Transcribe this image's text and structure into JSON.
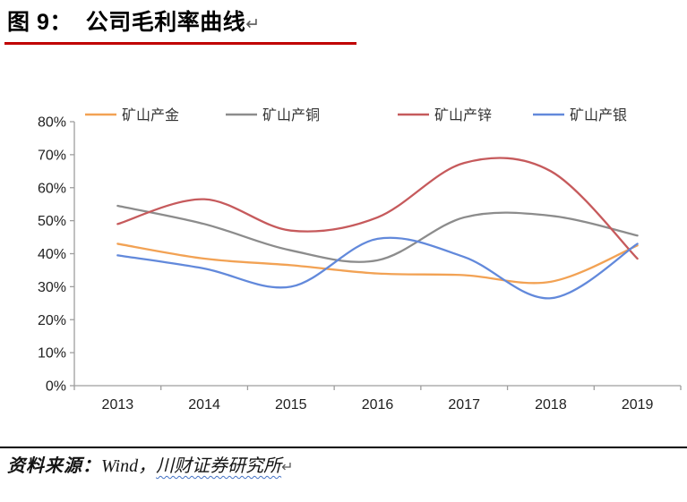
{
  "page": {
    "title": "图 9：  公司毛利率曲线",
    "title_return_mark": "↵",
    "footer": {
      "prefix": "资料来源：",
      "source_plain": "Wind，",
      "source_underlined": "川财证券研究所",
      "return_mark": "↵"
    }
  },
  "colors": {
    "title_rule": "#C00000",
    "footer_rule": "#000000",
    "wavy_underline": "#4472C4",
    "axis": "#9E9E9E",
    "tick_label": "#1F1F1F",
    "legend_label": "#333333"
  },
  "chart_data": {
    "type": "line",
    "title": "公司毛利率曲线",
    "categories": [
      "2013",
      "2014",
      "2015",
      "2016",
      "2017",
      "2018",
      "2019"
    ],
    "series": [
      {
        "key": "gold",
        "name": "矿山产金",
        "color": "#F2A254",
        "values": [
          43.0,
          38.5,
          36.5,
          34.0,
          33.5,
          31.5,
          42.5
        ]
      },
      {
        "key": "copper",
        "name": "矿山产铜",
        "color": "#8C8C8C",
        "values": [
          54.5,
          49.0,
          41.0,
          38.0,
          51.0,
          51.5,
          45.5
        ]
      },
      {
        "key": "zinc",
        "name": "矿山产锌",
        "color": "#C65A5C",
        "values": [
          49.0,
          56.5,
          47.0,
          51.0,
          67.5,
          65.0,
          38.5
        ]
      },
      {
        "key": "silver",
        "name": "矿山产银",
        "color": "#6289DB",
        "values": [
          39.5,
          35.5,
          30.0,
          44.5,
          39.0,
          26.5,
          43.0
        ]
      }
    ],
    "xlabel": "",
    "ylabel": "",
    "ylim": [
      0,
      80
    ],
    "ytick_step": 10,
    "ytick_format": "percent",
    "grid": false,
    "smooth": true,
    "legend_position": "top"
  }
}
